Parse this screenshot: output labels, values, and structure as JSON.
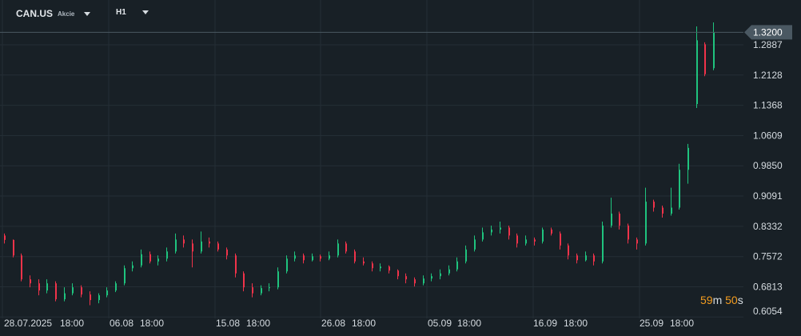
{
  "header": {
    "symbol": "CAN.US",
    "asset_type": "Akcie",
    "timeframe": "H1"
  },
  "countdown": {
    "minutes": "59",
    "minutes_unit": "m",
    "seconds": "50",
    "seconds_unit": "s"
  },
  "colors": {
    "up": "#1fc37e",
    "down": "#f0334a",
    "background": "#182026",
    "grid": "#242e35",
    "price_label_bg": "#4a5862"
  },
  "chart_data": {
    "type": "candlestick",
    "symbol": "CAN.US",
    "timeframe": "H1",
    "current_price": "1.3200",
    "y_ticks": [
      "1.2887",
      "1.2128",
      "1.1368",
      "1.0609",
      "0.9850",
      "0.9091",
      "0.8332",
      "0.7572",
      "0.6813",
      "0.6054"
    ],
    "x_ticks": [
      "28.07.2025",
      "18:00",
      "06.08",
      "18:00",
      "15.08",
      "18:00",
      "26.08",
      "18:00",
      "05.09",
      "18:00",
      "16.09",
      "18:00",
      "25.09",
      "18:00"
    ],
    "grid": true,
    "ohlc": [
      [
        0.81,
        0.815,
        0.79,
        0.799
      ],
      [
        0.799,
        0.8,
        0.755,
        0.76
      ],
      [
        0.76,
        0.765,
        0.695,
        0.7
      ],
      [
        0.7,
        0.71,
        0.68,
        0.69
      ],
      [
        0.69,
        0.7,
        0.66,
        0.672
      ],
      [
        0.672,
        0.7,
        0.665,
        0.69
      ],
      [
        0.69,
        0.695,
        0.645,
        0.65
      ],
      [
        0.65,
        0.68,
        0.645,
        0.665
      ],
      [
        0.665,
        0.69,
        0.66,
        0.68
      ],
      [
        0.68,
        0.685,
        0.655,
        0.662
      ],
      [
        0.662,
        0.67,
        0.635,
        0.648
      ],
      [
        0.648,
        0.665,
        0.64,
        0.66
      ],
      [
        0.66,
        0.68,
        0.655,
        0.672
      ],
      [
        0.672,
        0.695,
        0.668,
        0.69
      ],
      [
        0.69,
        0.735,
        0.685,
        0.728
      ],
      [
        0.728,
        0.745,
        0.72,
        0.735
      ],
      [
        0.735,
        0.775,
        0.73,
        0.763
      ],
      [
        0.763,
        0.77,
        0.74,
        0.745
      ],
      [
        0.745,
        0.76,
        0.735,
        0.752
      ],
      [
        0.752,
        0.78,
        0.745,
        0.77
      ],
      [
        0.77,
        0.815,
        0.765,
        0.8
      ],
      [
        0.8,
        0.81,
        0.78,
        0.79
      ],
      [
        0.79,
        0.8,
        0.73,
        0.77
      ],
      [
        0.77,
        0.82,
        0.765,
        0.795
      ],
      [
        0.795,
        0.805,
        0.78,
        0.79
      ],
      [
        0.79,
        0.795,
        0.77,
        0.775
      ],
      [
        0.775,
        0.78,
        0.75,
        0.76
      ],
      [
        0.76,
        0.765,
        0.705,
        0.715
      ],
      [
        0.715,
        0.72,
        0.67,
        0.68
      ],
      [
        0.68,
        0.69,
        0.655,
        0.665
      ],
      [
        0.665,
        0.685,
        0.66,
        0.678
      ],
      [
        0.678,
        0.69,
        0.67,
        0.68
      ],
      [
        0.68,
        0.73,
        0.675,
        0.72
      ],
      [
        0.72,
        0.76,
        0.715,
        0.752
      ],
      [
        0.752,
        0.77,
        0.745,
        0.76
      ],
      [
        0.76,
        0.765,
        0.74,
        0.748
      ],
      [
        0.748,
        0.765,
        0.745,
        0.758
      ],
      [
        0.758,
        0.762,
        0.745,
        0.752
      ],
      [
        0.752,
        0.77,
        0.748,
        0.76
      ],
      [
        0.76,
        0.8,
        0.755,
        0.79
      ],
      [
        0.79,
        0.795,
        0.765,
        0.77
      ],
      [
        0.77,
        0.775,
        0.74,
        0.745
      ],
      [
        0.745,
        0.755,
        0.735,
        0.74
      ],
      [
        0.74,
        0.745,
        0.72,
        0.728
      ],
      [
        0.728,
        0.74,
        0.72,
        0.732
      ],
      [
        0.732,
        0.735,
        0.715,
        0.722
      ],
      [
        0.722,
        0.725,
        0.7,
        0.708
      ],
      [
        0.708,
        0.715,
        0.69,
        0.7
      ],
      [
        0.7,
        0.705,
        0.682,
        0.69
      ],
      [
        0.69,
        0.71,
        0.685,
        0.702
      ],
      [
        0.702,
        0.715,
        0.695,
        0.708
      ],
      [
        0.708,
        0.725,
        0.7,
        0.715
      ],
      [
        0.715,
        0.735,
        0.71,
        0.725
      ],
      [
        0.725,
        0.755,
        0.72,
        0.745
      ],
      [
        0.745,
        0.785,
        0.74,
        0.775
      ],
      [
        0.775,
        0.81,
        0.77,
        0.8
      ],
      [
        0.8,
        0.83,
        0.795,
        0.818
      ],
      [
        0.818,
        0.835,
        0.81,
        0.825
      ],
      [
        0.825,
        0.845,
        0.815,
        0.83
      ],
      [
        0.83,
        0.835,
        0.8,
        0.81
      ],
      [
        0.81,
        0.815,
        0.78,
        0.79
      ],
      [
        0.79,
        0.81,
        0.785,
        0.8
      ],
      [
        0.8,
        0.805,
        0.785,
        0.795
      ],
      [
        0.795,
        0.83,
        0.79,
        0.825
      ],
      [
        0.825,
        0.83,
        0.81,
        0.815
      ],
      [
        0.815,
        0.82,
        0.775,
        0.785
      ],
      [
        0.785,
        0.79,
        0.75,
        0.76
      ],
      [
        0.76,
        0.765,
        0.74,
        0.748
      ],
      [
        0.748,
        0.77,
        0.745,
        0.76
      ],
      [
        0.76,
        0.765,
        0.735,
        0.745
      ],
      [
        0.745,
        0.845,
        0.74,
        0.835
      ],
      [
        0.835,
        0.905,
        0.83,
        0.865
      ],
      [
        0.865,
        0.87,
        0.825,
        0.835
      ],
      [
        0.835,
        0.84,
        0.79,
        0.8
      ],
      [
        0.8,
        0.805,
        0.775,
        0.79
      ],
      [
        0.79,
        0.93,
        0.785,
        0.895
      ],
      [
        0.895,
        0.9,
        0.87,
        0.88
      ],
      [
        0.88,
        0.885,
        0.855,
        0.865
      ],
      [
        0.865,
        0.93,
        0.86,
        0.88
      ],
      [
        0.88,
        0.99,
        0.875,
        0.975
      ],
      [
        0.975,
        1.04,
        0.94,
        1.03
      ],
      [
        1.14,
        1.335,
        1.13,
        1.3
      ],
      [
        1.29,
        1.295,
        1.21,
        1.215
      ],
      [
        1.23,
        1.345,
        1.225,
        1.32
      ]
    ]
  }
}
